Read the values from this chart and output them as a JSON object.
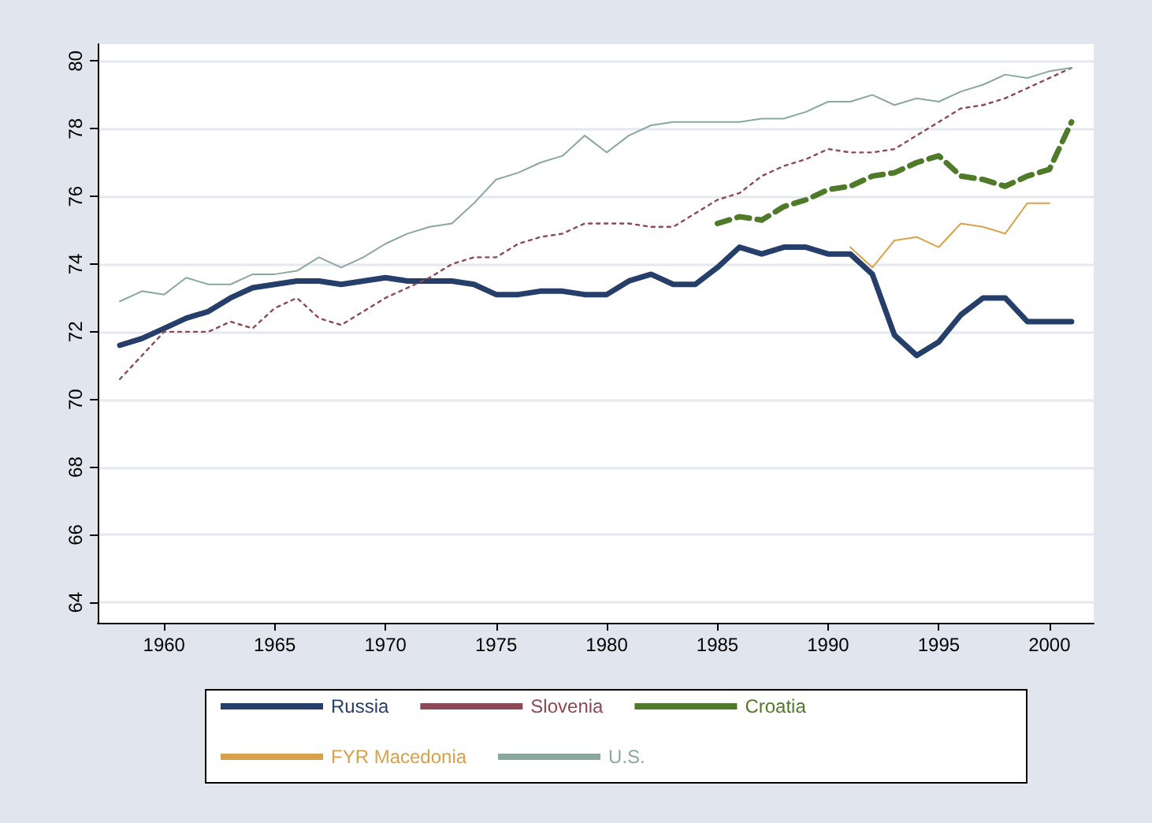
{
  "chart_data": {
    "type": "line",
    "x": [
      1958,
      1959,
      1960,
      1961,
      1962,
      1963,
      1964,
      1965,
      1966,
      1967,
      1968,
      1969,
      1970,
      1971,
      1972,
      1973,
      1974,
      1975,
      1976,
      1977,
      1978,
      1979,
      1980,
      1981,
      1982,
      1983,
      1984,
      1985,
      1986,
      1987,
      1988,
      1989,
      1990,
      1991,
      1992,
      1993,
      1994,
      1995,
      1996,
      1997,
      1998,
      1999,
      2000,
      2001
    ],
    "series": [
      {
        "name": "Russia",
        "color": "#263f6a",
        "line_style": "solid",
        "values": [
          71.6,
          71.8,
          72.1,
          72.4,
          72.6,
          73.0,
          73.3,
          73.4,
          73.5,
          73.5,
          73.4,
          73.5,
          73.6,
          73.5,
          73.5,
          73.5,
          73.4,
          73.1,
          73.1,
          73.2,
          73.2,
          73.1,
          73.1,
          73.5,
          73.7,
          73.4,
          73.4,
          73.9,
          74.5,
          74.3,
          74.5,
          74.5,
          74.3,
          74.3,
          73.7,
          71.9,
          71.3,
          71.7,
          72.5,
          73.0,
          73.0,
          72.3,
          72.3,
          72.3
        ]
      },
      {
        "name": "Slovenia",
        "color": "#8b4a55",
        "line_style": "dotted",
        "values": [
          70.6,
          71.3,
          72.0,
          72.0,
          72.0,
          72.3,
          72.1,
          72.7,
          73.0,
          72.4,
          72.2,
          72.6,
          73.0,
          73.3,
          73.6,
          74.0,
          74.2,
          74.2,
          74.6,
          74.8,
          74.9,
          75.2,
          75.2,
          75.2,
          75.1,
          75.1,
          75.5,
          75.9,
          76.1,
          76.6,
          76.9,
          77.1,
          77.4,
          77.3,
          77.3,
          77.4,
          77.8,
          78.2,
          78.6,
          78.7,
          78.9,
          79.2,
          79.5,
          79.8
        ]
      },
      {
        "name": "Croatia",
        "color": "#4e7a2a",
        "line_style": "dashed",
        "values": [
          null,
          null,
          null,
          null,
          null,
          null,
          null,
          null,
          null,
          null,
          null,
          null,
          null,
          null,
          null,
          null,
          null,
          null,
          null,
          null,
          null,
          null,
          null,
          null,
          null,
          null,
          null,
          75.2,
          75.4,
          75.3,
          75.7,
          75.9,
          76.2,
          76.3,
          76.6,
          76.7,
          77.0,
          77.2,
          76.6,
          76.5,
          76.3,
          76.6,
          76.8,
          78.2
        ]
      },
      {
        "name": "FYR Macedonia",
        "color": "#d9a24a",
        "line_style": "solid",
        "values": [
          null,
          null,
          null,
          null,
          null,
          null,
          null,
          null,
          null,
          null,
          null,
          null,
          null,
          null,
          null,
          null,
          null,
          null,
          null,
          null,
          null,
          null,
          null,
          null,
          null,
          null,
          null,
          null,
          null,
          null,
          null,
          null,
          null,
          74.5,
          73.9,
          74.7,
          74.8,
          74.5,
          75.2,
          75.1,
          74.9,
          75.8,
          75.8,
          null
        ]
      },
      {
        "name": "U.S.",
        "color": "#8aa89e",
        "line_style": "solid",
        "values": [
          72.9,
          73.2,
          73.1,
          73.6,
          73.4,
          73.4,
          73.7,
          73.7,
          73.8,
          74.2,
          73.9,
          74.2,
          74.6,
          74.9,
          75.1,
          75.2,
          75.8,
          76.5,
          76.7,
          77.0,
          77.2,
          77.8,
          77.3,
          77.8,
          78.1,
          78.2,
          78.2,
          78.2,
          78.2,
          78.3,
          78.3,
          78.5,
          78.8,
          78.8,
          79.0,
          78.7,
          78.9,
          78.8,
          79.1,
          79.3,
          79.6,
          79.5,
          79.7,
          79.8
        ]
      }
    ],
    "xlim": [
      1957,
      2002
    ],
    "xticks": [
      1960,
      1965,
      1970,
      1975,
      1980,
      1985,
      1990,
      1995,
      2000
    ],
    "ylim": [
      63.4,
      80.5
    ],
    "yticks": [
      64,
      66,
      68,
      70,
      72,
      74,
      76,
      78,
      80
    ],
    "grid": "y",
    "legend": "bottom",
    "marker": "none"
  }
}
